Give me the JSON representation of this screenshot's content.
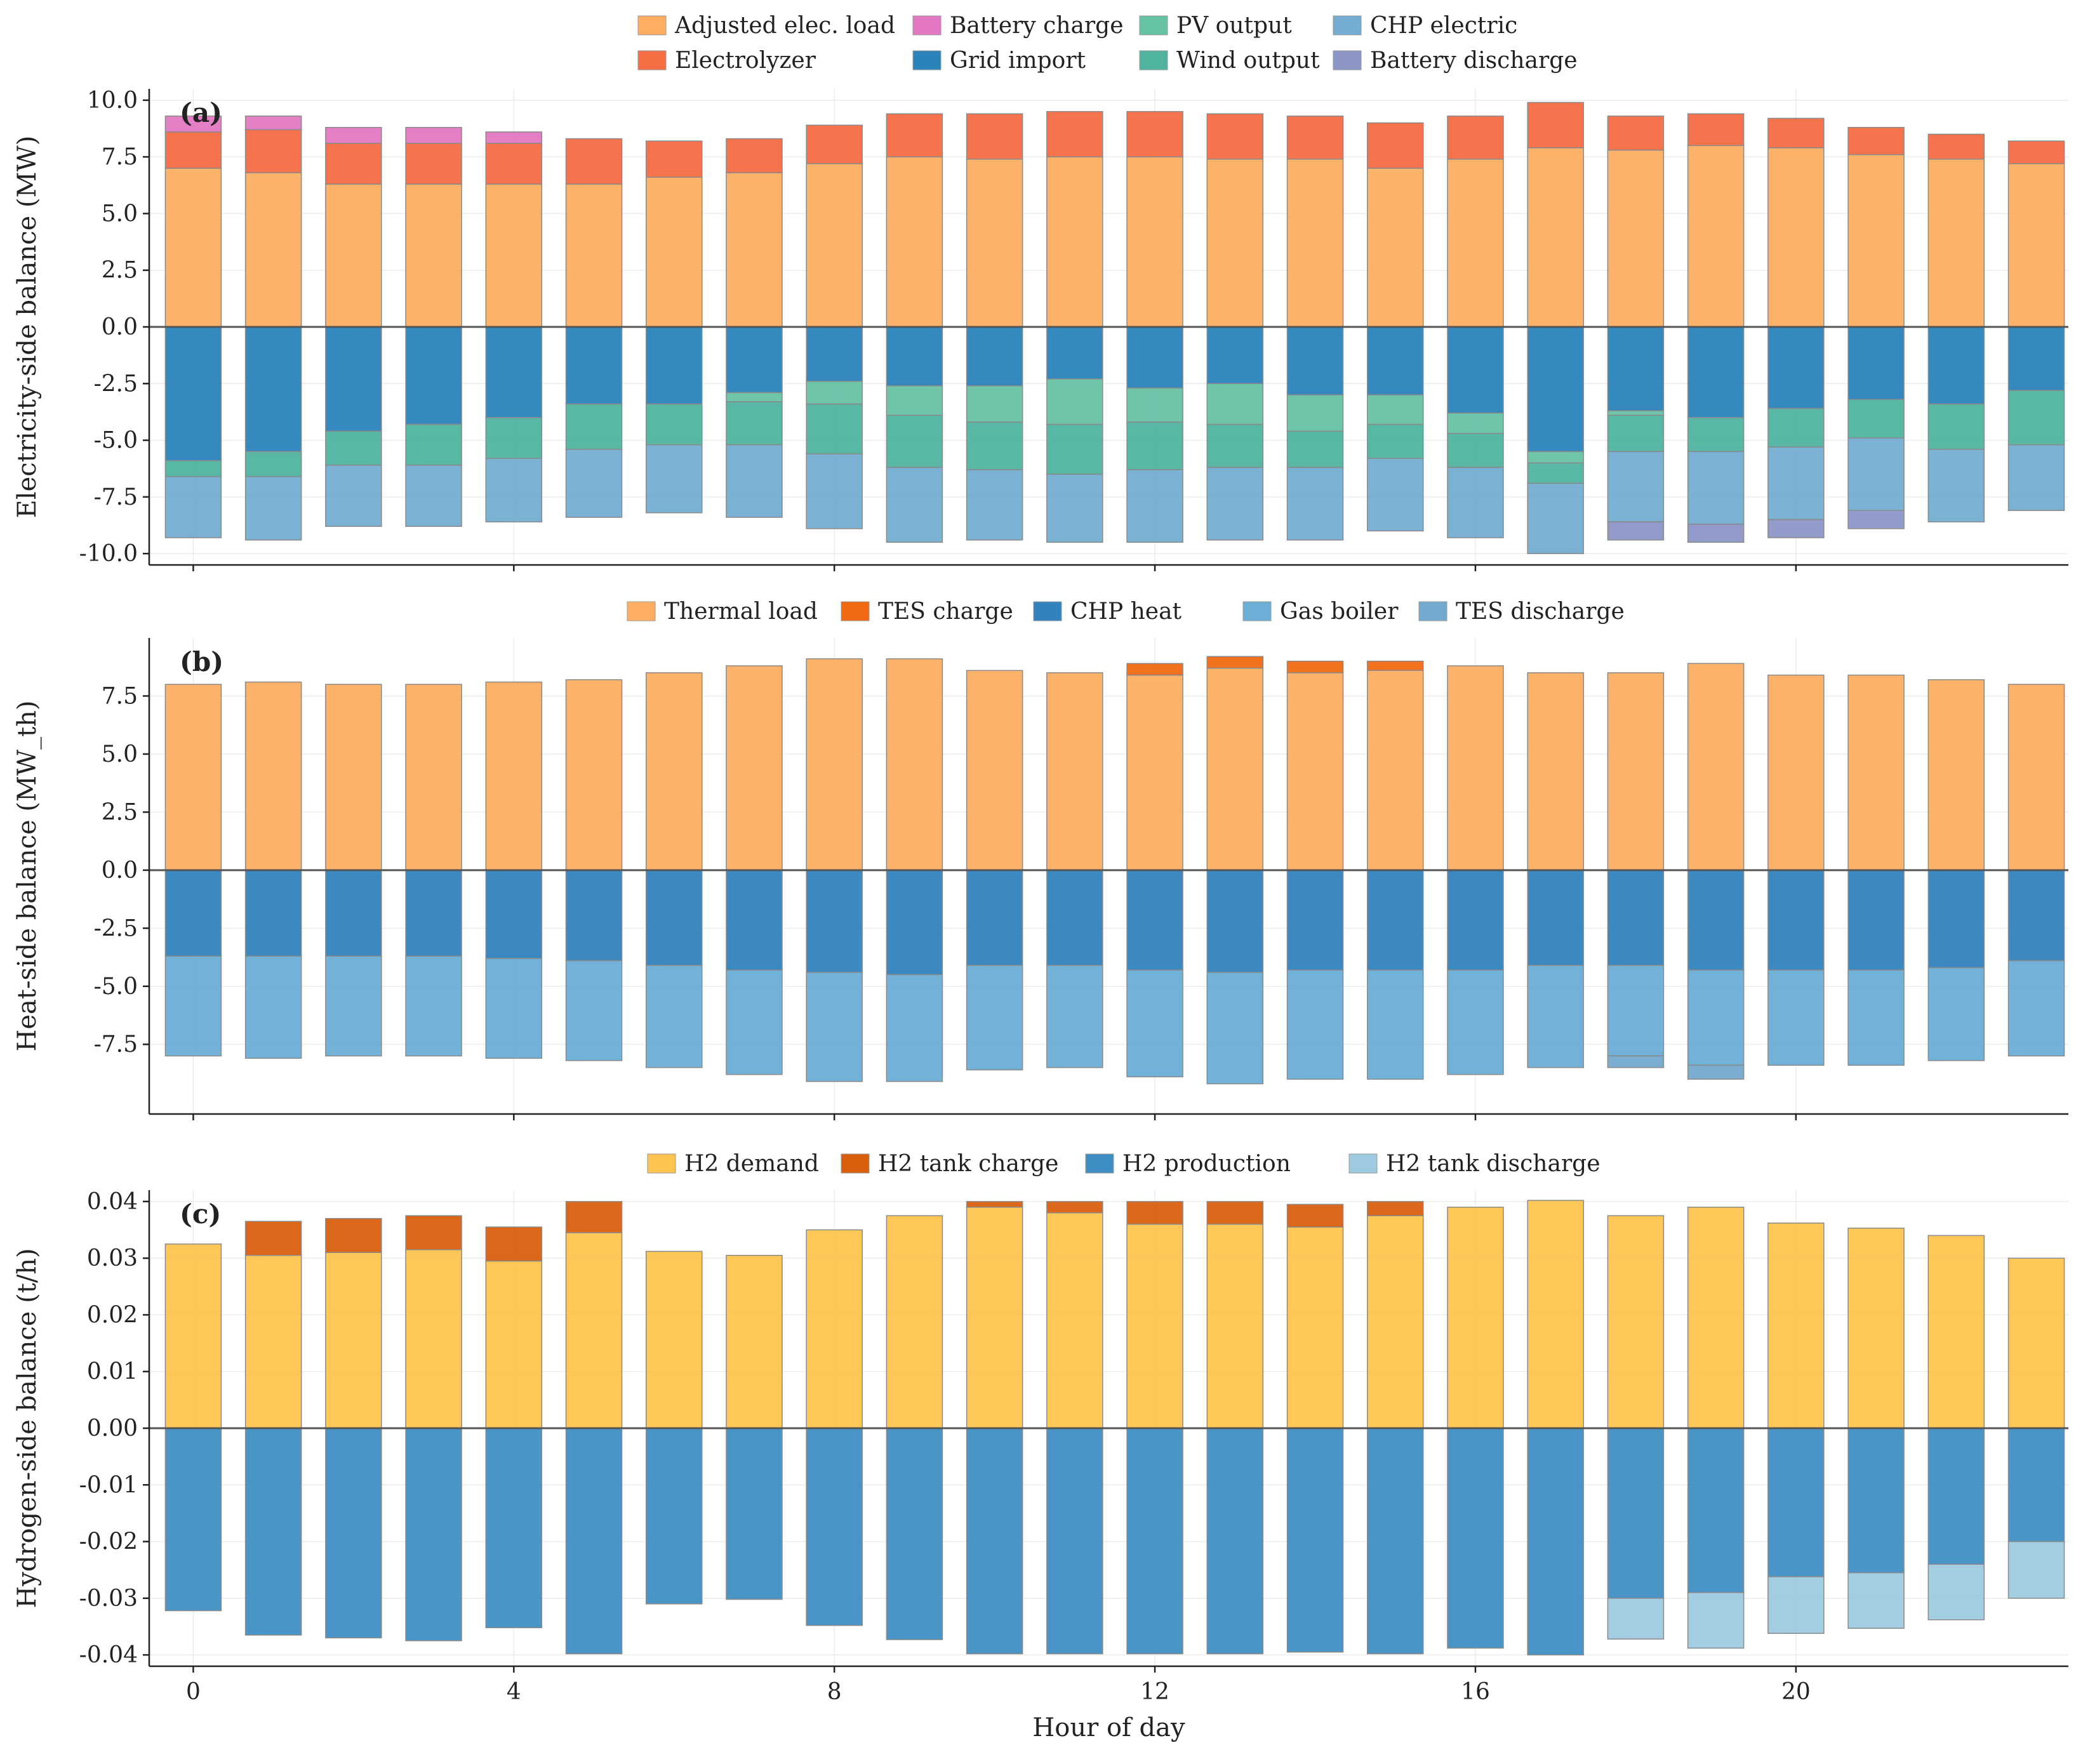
{
  "chart_data": [
    {
      "type": "bar",
      "stacked": true,
      "panel_label": "(a)",
      "ylabel": "Electricity-side balance (MW)",
      "xlabel": "",
      "ylim": [
        -10.5,
        10.5
      ],
      "yticks": [
        "10.0",
        "7.5",
        "5.0",
        "2.5",
        "0.0",
        "-2.5",
        "-5.0",
        "-7.5",
        "-10.0"
      ],
      "ytick_values": [
        10,
        7.5,
        5,
        2.5,
        0,
        -2.5,
        -5,
        -7.5,
        -10
      ],
      "legend": [
        {
          "label": "Adjusted elec. load",
          "color": "#fdae61"
        },
        {
          "label": "Battery charge",
          "color": "#e377c2"
        },
        {
          "label": "PV output",
          "color": "#66c2a5"
        },
        {
          "label": "CHP electric",
          "color": "#74add1"
        },
        {
          "label": "Electrolyzer",
          "color": "#f46d43"
        },
        {
          "label": "Grid import",
          "color": "#2b83ba"
        },
        {
          "label": "Wind output",
          "color": "#4fb3a0"
        },
        {
          "label": "Battery discharge",
          "color": "#8c96c6"
        }
      ],
      "positive_series": [
        {
          "name": "Adjusted elec. load",
          "color": "#fdae61",
          "values": [
            7.0,
            6.8,
            6.3,
            6.3,
            6.3,
            6.3,
            6.6,
            6.8,
            7.2,
            7.5,
            7.4,
            7.5,
            7.5,
            7.4,
            7.4,
            7.0,
            7.4,
            7.9,
            7.8,
            8.0,
            7.9,
            7.6,
            7.4,
            7.2
          ]
        },
        {
          "name": "Electrolyzer",
          "color": "#f46d43",
          "values": [
            1.6,
            1.9,
            1.8,
            1.8,
            1.8,
            2.0,
            1.6,
            1.5,
            1.7,
            1.9,
            2.0,
            2.0,
            2.0,
            2.0,
            1.9,
            2.0,
            1.9,
            2.0,
            1.5,
            1.4,
            1.3,
            1.2,
            1.1,
            1.0
          ]
        },
        {
          "name": "Battery charge",
          "color": "#e377c2",
          "values": [
            0.7,
            0.6,
            0.7,
            0.7,
            0.5,
            0,
            0,
            0,
            0,
            0,
            0,
            0,
            0,
            0,
            0,
            0,
            0,
            0,
            0,
            0,
            0,
            0,
            0,
            0
          ]
        }
      ],
      "negative_series": [
        {
          "name": "Grid import",
          "color": "#2b83ba",
          "values": [
            5.9,
            5.5,
            4.6,
            4.3,
            4.0,
            3.4,
            3.4,
            2.9,
            2.4,
            2.6,
            2.6,
            2.3,
            2.7,
            2.5,
            3.0,
            3.0,
            3.8,
            5.5,
            3.7,
            4.0,
            3.6,
            3.2,
            3.4,
            2.8
          ]
        },
        {
          "name": "PV output",
          "color": "#66c2a5",
          "values": [
            0,
            0,
            0,
            0,
            0,
            0,
            0,
            0.4,
            1.0,
            1.3,
            1.6,
            2.0,
            1.5,
            1.8,
            1.6,
            1.3,
            0.9,
            0.5,
            0.2,
            0,
            0,
            0,
            0,
            0
          ]
        },
        {
          "name": "Wind output",
          "color": "#4fb3a0",
          "values": [
            0.7,
            1.1,
            1.5,
            1.8,
            1.8,
            2.0,
            1.8,
            1.9,
            2.2,
            2.3,
            2.1,
            2.2,
            2.1,
            1.9,
            1.6,
            1.5,
            1.5,
            0.9,
            1.6,
            1.5,
            1.7,
            1.7,
            2.0,
            2.4
          ]
        },
        {
          "name": "CHP electric",
          "color": "#74add1",
          "values": [
            2.7,
            2.8,
            2.7,
            2.7,
            2.8,
            3.0,
            3.0,
            3.2,
            3.3,
            3.3,
            3.1,
            3.0,
            3.2,
            3.2,
            3.2,
            3.2,
            3.1,
            3.1,
            3.1,
            3.2,
            3.2,
            3.2,
            3.2,
            2.9
          ]
        },
        {
          "name": "Battery discharge",
          "color": "#8c96c6",
          "values": [
            0,
            0,
            0,
            0,
            0,
            0,
            0,
            0,
            0,
            0,
            0,
            0,
            0,
            0,
            0,
            0,
            0,
            0,
            0.8,
            0.8,
            0.8,
            0.8,
            0,
            0
          ]
        }
      ]
    },
    {
      "type": "bar",
      "stacked": true,
      "panel_label": "(b)",
      "ylabel": "Heat-side balance (MW_th)",
      "xlabel": "",
      "ylim": [
        -10.5,
        10.0
      ],
      "yticks": [
        "7.5",
        "5.0",
        "2.5",
        "0.0",
        "-2.5",
        "-5.0",
        "-7.5"
      ],
      "ytick_values": [
        7.5,
        5,
        2.5,
        0,
        -2.5,
        -5,
        -7.5
      ],
      "legend": [
        {
          "label": "Thermal load",
          "color": "#fdae61"
        },
        {
          "label": "TES charge",
          "color": "#f16913"
        },
        {
          "label": "CHP heat",
          "color": "#3182bd"
        },
        {
          "label": "Gas boiler",
          "color": "#6baed6"
        },
        {
          "label": "TES discharge",
          "color": "#74a9cf"
        }
      ],
      "positive_series": [
        {
          "name": "Thermal load",
          "color": "#fdae61",
          "values": [
            8.0,
            8.1,
            8.0,
            8.0,
            8.1,
            8.2,
            8.5,
            8.8,
            9.1,
            9.1,
            8.6,
            8.5,
            8.4,
            8.7,
            8.5,
            8.6,
            8.8,
            8.5,
            8.5,
            8.9,
            8.4,
            8.4,
            8.2,
            8.0
          ]
        },
        {
          "name": "TES charge",
          "color": "#f16913",
          "values": [
            0,
            0,
            0,
            0,
            0,
            0,
            0,
            0,
            0,
            0,
            0,
            0,
            0.5,
            0.5,
            0.5,
            0.4,
            0,
            0,
            0,
            0,
            0,
            0,
            0,
            0
          ]
        }
      ],
      "negative_series": [
        {
          "name": "CHP heat",
          "color": "#3182bd",
          "values": [
            3.7,
            3.7,
            3.7,
            3.7,
            3.8,
            3.9,
            4.1,
            4.3,
            4.4,
            4.5,
            4.1,
            4.1,
            4.3,
            4.4,
            4.3,
            4.3,
            4.3,
            4.1,
            4.1,
            4.3,
            4.3,
            4.3,
            4.2,
            3.9
          ]
        },
        {
          "name": "Gas boiler",
          "color": "#6baed6",
          "values": [
            4.3,
            4.4,
            4.3,
            4.3,
            4.3,
            4.3,
            4.4,
            4.5,
            4.7,
            4.6,
            4.5,
            4.4,
            4.6,
            4.8,
            4.7,
            4.7,
            4.5,
            4.4,
            3.9,
            4.1,
            4.1,
            4.1,
            4.0,
            4.1
          ]
        },
        {
          "name": "TES discharge",
          "color": "#74a9cf",
          "values": [
            0,
            0,
            0,
            0,
            0,
            0,
            0,
            0,
            0,
            0,
            0,
            0,
            0,
            0,
            0,
            0,
            0,
            0,
            0.5,
            0.6,
            0,
            0,
            0,
            0
          ]
        }
      ]
    },
    {
      "type": "bar",
      "stacked": true,
      "panel_label": "(c)",
      "ylabel": "Hydrogen-side balance (t/h)",
      "xlabel": "Hour of day",
      "ylim": [
        -0.042,
        0.042
      ],
      "yticks": [
        "0.04",
        "0.03",
        "0.02",
        "0.01",
        "0.00",
        "-0.01",
        "-0.02",
        "-0.03",
        "-0.04"
      ],
      "ytick_values": [
        0.04,
        0.03,
        0.02,
        0.01,
        0,
        -0.01,
        -0.02,
        -0.03,
        -0.04
      ],
      "xticks": [
        "0",
        "4",
        "8",
        "12",
        "16",
        "20"
      ],
      "xtick_values": [
        0,
        4,
        8,
        12,
        16,
        20
      ],
      "legend": [
        {
          "label": "H2 demand",
          "color": "#fec44f"
        },
        {
          "label": "H2 tank charge",
          "color": "#d95f0e"
        },
        {
          "label": "H2 production",
          "color": "#3f8fc5"
        },
        {
          "label": "H2 tank discharge",
          "color": "#9ecae1"
        }
      ],
      "positive_series": [
        {
          "name": "H2 demand",
          "color": "#fec44f",
          "values": [
            0.0325,
            0.0305,
            0.031,
            0.0315,
            0.0295,
            0.0345,
            0.0312,
            0.0305,
            0.035,
            0.0375,
            0.039,
            0.038,
            0.036,
            0.036,
            0.0355,
            0.0375,
            0.039,
            0.0402,
            0.0375,
            0.039,
            0.0362,
            0.0353,
            0.034,
            0.03
          ]
        },
        {
          "name": "H2 tank charge",
          "color": "#d95f0e",
          "values": [
            0,
            0.006,
            0.006,
            0.006,
            0.006,
            0.0055,
            0,
            0,
            0,
            0,
            0.001,
            0.002,
            0.004,
            0.004,
            0.004,
            0.0025,
            0,
            0,
            0,
            0,
            0,
            0,
            0,
            0
          ]
        }
      ],
      "negative_series": [
        {
          "name": "H2 production",
          "color": "#3f8fc5",
          "values": [
            0.0322,
            0.0365,
            0.037,
            0.0375,
            0.0352,
            0.0398,
            0.031,
            0.0302,
            0.0348,
            0.0373,
            0.0398,
            0.0398,
            0.0398,
            0.0398,
            0.0395,
            0.0398,
            0.0388,
            0.04,
            0.03,
            0.029,
            0.0262,
            0.0255,
            0.024,
            0.02
          ]
        },
        {
          "name": "H2 tank discharge",
          "color": "#9ecae1",
          "values": [
            0,
            0,
            0,
            0,
            0,
            0,
            0,
            0,
            0,
            0,
            0,
            0,
            0,
            0,
            0,
            0,
            0,
            0,
            0.0072,
            0.0098,
            0.01,
            0.0098,
            0.0098,
            0.01
          ]
        }
      ]
    }
  ]
}
